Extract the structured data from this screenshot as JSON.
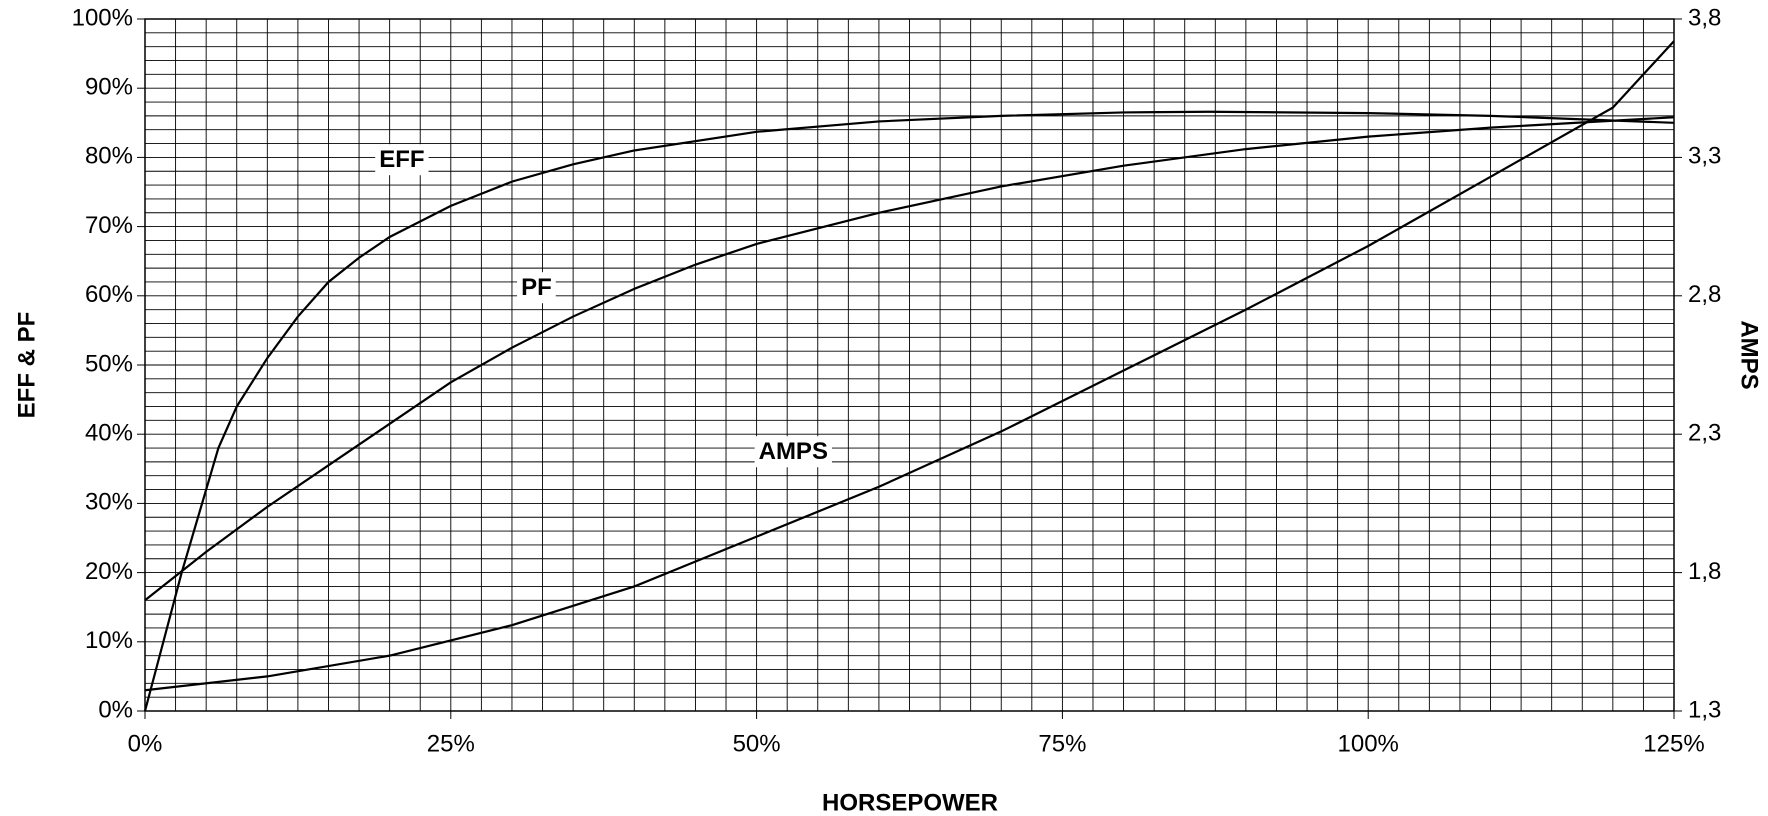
{
  "chart_data": {
    "type": "line",
    "xlabel": "HORSEPOWER",
    "ylabel": "EFF & PF",
    "y2label": "AMPS",
    "xlim": [
      0,
      125
    ],
    "ylim": [
      0,
      100
    ],
    "y2lim": [
      1.3,
      3.8
    ],
    "xticks": [
      {
        "value": 0,
        "label": "0%"
      },
      {
        "value": 25,
        "label": "25%"
      },
      {
        "value": 50,
        "label": "50%"
      },
      {
        "value": 75,
        "label": "75%"
      },
      {
        "value": 100,
        "label": "100%"
      },
      {
        "value": 125,
        "label": "125%"
      }
    ],
    "yticks": [
      {
        "value": 0,
        "label": "0%"
      },
      {
        "value": 10,
        "label": "10%"
      },
      {
        "value": 20,
        "label": "20%"
      },
      {
        "value": 30,
        "label": "30%"
      },
      {
        "value": 40,
        "label": "40%"
      },
      {
        "value": 50,
        "label": "50%"
      },
      {
        "value": 60,
        "label": "60%"
      },
      {
        "value": 70,
        "label": "70%"
      },
      {
        "value": 80,
        "label": "80%"
      },
      {
        "value": 90,
        "label": "90%"
      },
      {
        "value": 100,
        "label": "100%"
      }
    ],
    "y2ticks": [
      {
        "value": 1.3,
        "label": "1,3"
      },
      {
        "value": 1.8,
        "label": "1,8"
      },
      {
        "value": 2.3,
        "label": "2,3"
      },
      {
        "value": 2.8,
        "label": "2,8"
      },
      {
        "value": 3.3,
        "label": "3,3"
      },
      {
        "value": 3.8,
        "label": "3,8"
      }
    ],
    "grid": true,
    "minor_grid": {
      "x": 2.5,
      "y": 2
    },
    "series": [
      {
        "name": "EFF",
        "color": "#000000",
        "x": [
          0,
          3,
          6,
          7.5,
          10,
          12.5,
          15,
          17.5,
          20,
          25,
          30,
          35,
          40,
          50,
          60,
          70,
          80,
          87,
          100,
          110,
          125
        ],
        "values": [
          0,
          20,
          38,
          44,
          51,
          57,
          62,
          65.5,
          68.5,
          73,
          76.5,
          79,
          81,
          83.7,
          85.2,
          86,
          86.5,
          86.6,
          86.4,
          86,
          85
        ]
      },
      {
        "name": "PF",
        "color": "#000000",
        "x": [
          0,
          5,
          10,
          15,
          20,
          25,
          30,
          35,
          40,
          45,
          50,
          60,
          70,
          80,
          90,
          100,
          110,
          125
        ],
        "values": [
          16,
          23,
          29.5,
          35.5,
          41.5,
          47.5,
          52.5,
          57,
          61,
          64.5,
          67.5,
          72,
          75.8,
          78.8,
          81.2,
          83,
          84.3,
          85.8
        ]
      },
      {
        "name": "AMPS",
        "color": "#000000",
        "axis": "y2",
        "x": [
          0,
          10,
          20,
          30,
          40,
          50,
          60,
          70,
          80,
          90,
          100,
          110,
          120,
          125
        ],
        "values": [
          1.375,
          1.425,
          1.5,
          1.61,
          1.75,
          1.93,
          2.11,
          2.31,
          2.53,
          2.75,
          2.98,
          3.23,
          3.48,
          3.72
        ]
      }
    ]
  }
}
